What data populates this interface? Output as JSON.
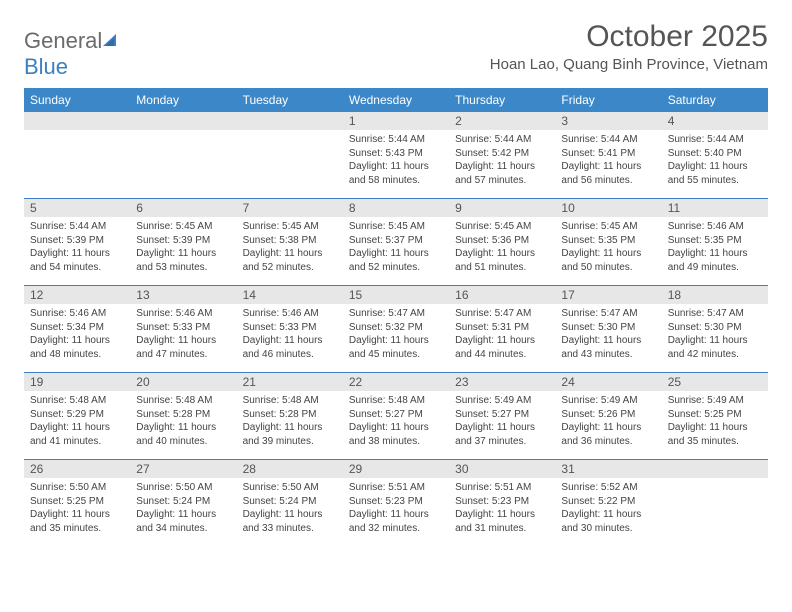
{
  "logo": {
    "text_main": "General",
    "text_accent": "Blue"
  },
  "title": "October 2025",
  "location": "Hoan Lao, Quang Binh Province, Vietnam",
  "colors": {
    "header_bg": "#3b87c8",
    "daynum_bg": "#e7e7e7",
    "week_border": "#3b7fc4",
    "text": "#444",
    "title_text": "#555",
    "logo_gray": "#6b6b6b",
    "logo_blue": "#3b7fc4"
  },
  "day_headers": [
    "Sunday",
    "Monday",
    "Tuesday",
    "Wednesday",
    "Thursday",
    "Friday",
    "Saturday"
  ],
  "weeks": [
    [
      {
        "empty": true
      },
      {
        "empty": true
      },
      {
        "empty": true
      },
      {
        "num": "1",
        "sunrise": "Sunrise: 5:44 AM",
        "sunset": "Sunset: 5:43 PM",
        "daylight": "Daylight: 11 hours and 58 minutes."
      },
      {
        "num": "2",
        "sunrise": "Sunrise: 5:44 AM",
        "sunset": "Sunset: 5:42 PM",
        "daylight": "Daylight: 11 hours and 57 minutes."
      },
      {
        "num": "3",
        "sunrise": "Sunrise: 5:44 AM",
        "sunset": "Sunset: 5:41 PM",
        "daylight": "Daylight: 11 hours and 56 minutes."
      },
      {
        "num": "4",
        "sunrise": "Sunrise: 5:44 AM",
        "sunset": "Sunset: 5:40 PM",
        "daylight": "Daylight: 11 hours and 55 minutes."
      }
    ],
    [
      {
        "num": "5",
        "sunrise": "Sunrise: 5:44 AM",
        "sunset": "Sunset: 5:39 PM",
        "daylight": "Daylight: 11 hours and 54 minutes."
      },
      {
        "num": "6",
        "sunrise": "Sunrise: 5:45 AM",
        "sunset": "Sunset: 5:39 PM",
        "daylight": "Daylight: 11 hours and 53 minutes."
      },
      {
        "num": "7",
        "sunrise": "Sunrise: 5:45 AM",
        "sunset": "Sunset: 5:38 PM",
        "daylight": "Daylight: 11 hours and 52 minutes."
      },
      {
        "num": "8",
        "sunrise": "Sunrise: 5:45 AM",
        "sunset": "Sunset: 5:37 PM",
        "daylight": "Daylight: 11 hours and 52 minutes."
      },
      {
        "num": "9",
        "sunrise": "Sunrise: 5:45 AM",
        "sunset": "Sunset: 5:36 PM",
        "daylight": "Daylight: 11 hours and 51 minutes."
      },
      {
        "num": "10",
        "sunrise": "Sunrise: 5:45 AM",
        "sunset": "Sunset: 5:35 PM",
        "daylight": "Daylight: 11 hours and 50 minutes."
      },
      {
        "num": "11",
        "sunrise": "Sunrise: 5:46 AM",
        "sunset": "Sunset: 5:35 PM",
        "daylight": "Daylight: 11 hours and 49 minutes."
      }
    ],
    [
      {
        "num": "12",
        "sunrise": "Sunrise: 5:46 AM",
        "sunset": "Sunset: 5:34 PM",
        "daylight": "Daylight: 11 hours and 48 minutes."
      },
      {
        "num": "13",
        "sunrise": "Sunrise: 5:46 AM",
        "sunset": "Sunset: 5:33 PM",
        "daylight": "Daylight: 11 hours and 47 minutes."
      },
      {
        "num": "14",
        "sunrise": "Sunrise: 5:46 AM",
        "sunset": "Sunset: 5:33 PM",
        "daylight": "Daylight: 11 hours and 46 minutes."
      },
      {
        "num": "15",
        "sunrise": "Sunrise: 5:47 AM",
        "sunset": "Sunset: 5:32 PM",
        "daylight": "Daylight: 11 hours and 45 minutes."
      },
      {
        "num": "16",
        "sunrise": "Sunrise: 5:47 AM",
        "sunset": "Sunset: 5:31 PM",
        "daylight": "Daylight: 11 hours and 44 minutes."
      },
      {
        "num": "17",
        "sunrise": "Sunrise: 5:47 AM",
        "sunset": "Sunset: 5:30 PM",
        "daylight": "Daylight: 11 hours and 43 minutes."
      },
      {
        "num": "18",
        "sunrise": "Sunrise: 5:47 AM",
        "sunset": "Sunset: 5:30 PM",
        "daylight": "Daylight: 11 hours and 42 minutes."
      }
    ],
    [
      {
        "num": "19",
        "sunrise": "Sunrise: 5:48 AM",
        "sunset": "Sunset: 5:29 PM",
        "daylight": "Daylight: 11 hours and 41 minutes."
      },
      {
        "num": "20",
        "sunrise": "Sunrise: 5:48 AM",
        "sunset": "Sunset: 5:28 PM",
        "daylight": "Daylight: 11 hours and 40 minutes."
      },
      {
        "num": "21",
        "sunrise": "Sunrise: 5:48 AM",
        "sunset": "Sunset: 5:28 PM",
        "daylight": "Daylight: 11 hours and 39 minutes."
      },
      {
        "num": "22",
        "sunrise": "Sunrise: 5:48 AM",
        "sunset": "Sunset: 5:27 PM",
        "daylight": "Daylight: 11 hours and 38 minutes."
      },
      {
        "num": "23",
        "sunrise": "Sunrise: 5:49 AM",
        "sunset": "Sunset: 5:27 PM",
        "daylight": "Daylight: 11 hours and 37 minutes."
      },
      {
        "num": "24",
        "sunrise": "Sunrise: 5:49 AM",
        "sunset": "Sunset: 5:26 PM",
        "daylight": "Daylight: 11 hours and 36 minutes."
      },
      {
        "num": "25",
        "sunrise": "Sunrise: 5:49 AM",
        "sunset": "Sunset: 5:25 PM",
        "daylight": "Daylight: 11 hours and 35 minutes."
      }
    ],
    [
      {
        "num": "26",
        "sunrise": "Sunrise: 5:50 AM",
        "sunset": "Sunset: 5:25 PM",
        "daylight": "Daylight: 11 hours and 35 minutes."
      },
      {
        "num": "27",
        "sunrise": "Sunrise: 5:50 AM",
        "sunset": "Sunset: 5:24 PM",
        "daylight": "Daylight: 11 hours and 34 minutes."
      },
      {
        "num": "28",
        "sunrise": "Sunrise: 5:50 AM",
        "sunset": "Sunset: 5:24 PM",
        "daylight": "Daylight: 11 hours and 33 minutes."
      },
      {
        "num": "29",
        "sunrise": "Sunrise: 5:51 AM",
        "sunset": "Sunset: 5:23 PM",
        "daylight": "Daylight: 11 hours and 32 minutes."
      },
      {
        "num": "30",
        "sunrise": "Sunrise: 5:51 AM",
        "sunset": "Sunset: 5:23 PM",
        "daylight": "Daylight: 11 hours and 31 minutes."
      },
      {
        "num": "31",
        "sunrise": "Sunrise: 5:52 AM",
        "sunset": "Sunset: 5:22 PM",
        "daylight": "Daylight: 11 hours and 30 minutes."
      },
      {
        "empty": true
      }
    ]
  ]
}
